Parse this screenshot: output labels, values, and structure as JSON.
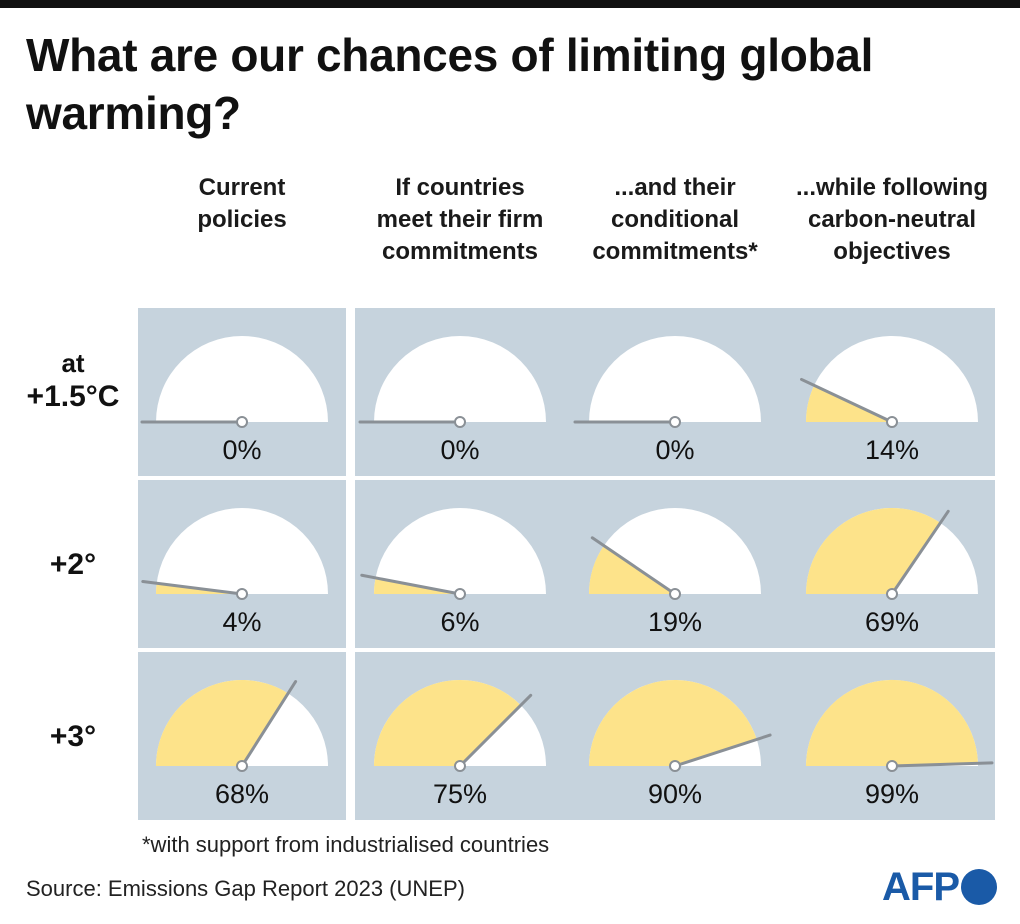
{
  "title": "What are our chances of limiting global warming?",
  "footnote": "*with support from industrialised countries",
  "source": "Source: Emissions Gap Report 2023 (UNEP)",
  "logo": "AFP",
  "colors": {
    "panel": "#c6d3dd",
    "gauge_face": "#ffffff",
    "gauge_fill": "#fde38a",
    "needle": "#8a9096",
    "logo": "#1a5aa7"
  },
  "chart_data": {
    "type": "gauge",
    "unit": "%",
    "range": [
      0,
      100
    ],
    "columns": [
      "Current\npolicies",
      "If countries\nmeet their firm\ncommitments",
      "...and their\nconditional\ncommitments*",
      "...while following\ncarbon-neutral\nobjectives"
    ],
    "rows": [
      {
        "label_prefix": "at",
        "label": "+1.5°C",
        "values": [
          0,
          0,
          0,
          14
        ],
        "value_labels": [
          "0%",
          "0%",
          "0%",
          "14%"
        ]
      },
      {
        "label_prefix": "",
        "label": "+2°",
        "values": [
          4,
          6,
          19,
          69
        ],
        "value_labels": [
          "4%",
          "6%",
          "19%",
          "69%"
        ]
      },
      {
        "label_prefix": "",
        "label": "+3°",
        "values": [
          68,
          75,
          90,
          99
        ],
        "value_labels": [
          "68%",
          "75%",
          "90%",
          "99%"
        ]
      }
    ]
  }
}
